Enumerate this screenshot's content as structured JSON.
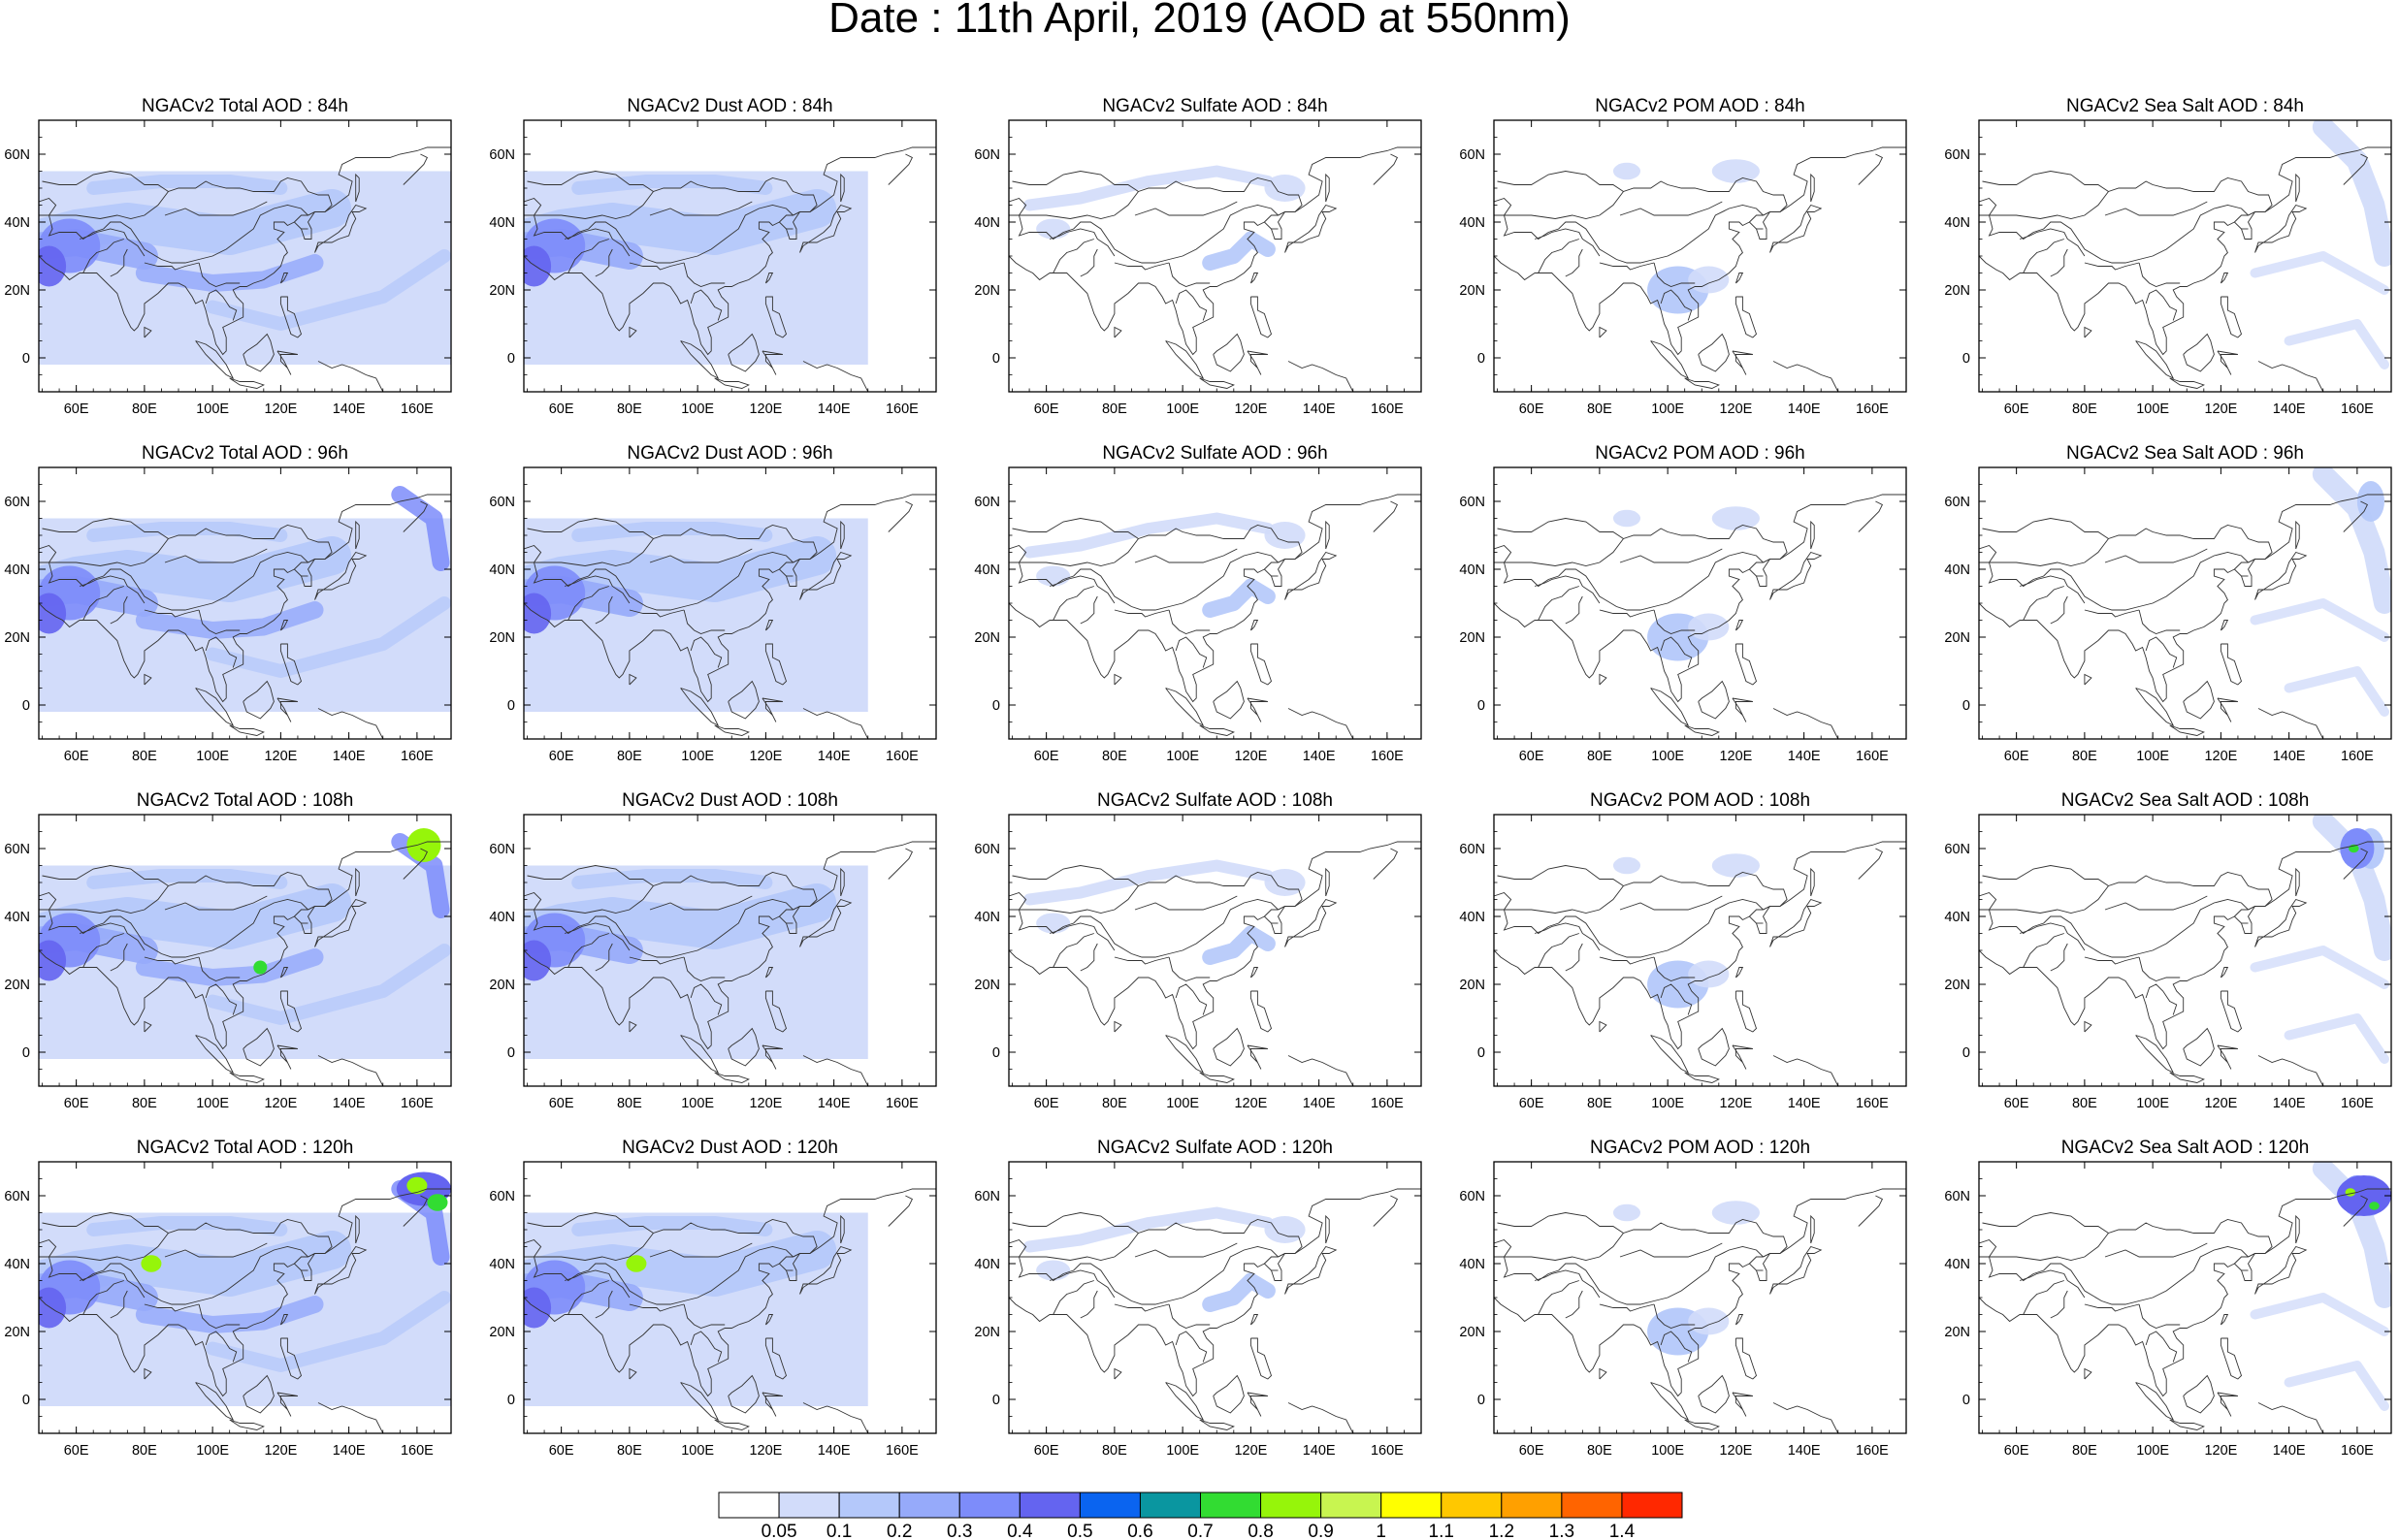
{
  "title": "Date : 11th April, 2019 (AOD at 550nm)",
  "map": {
    "x_ticks": [
      "60E",
      "80E",
      "100E",
      "120E",
      "140E",
      "160E"
    ],
    "y_ticks": [
      "60N",
      "40N",
      "20N",
      "0"
    ],
    "extent_lon": [
      49,
      170
    ],
    "extent_lat": [
      -10,
      70
    ]
  },
  "panels": [
    [
      "NGACv2 Total AOD : 84h",
      "NGACv2 Dust AOD : 84h",
      "NGACv2 Sulfate AOD : 84h",
      "NGACv2 POM AOD : 84h",
      "NGACv2 Sea Salt AOD : 84h"
    ],
    [
      "NGACv2 Total AOD : 96h",
      "NGACv2 Dust AOD : 96h",
      "NGACv2 Sulfate AOD : 96h",
      "NGACv2 POM AOD : 96h",
      "NGACv2 Sea Salt AOD : 96h"
    ],
    [
      "NGACv2 Total AOD : 108h",
      "NGACv2 Dust AOD : 108h",
      "NGACv2 Sulfate AOD : 108h",
      "NGACv2 POM AOD : 108h",
      "NGACv2 Sea Salt AOD : 108h"
    ],
    [
      "NGACv2 Total AOD : 120h",
      "NGACv2 Dust AOD : 120h",
      "NGACv2 Sulfate AOD : 120h",
      "NGACv2 POM AOD : 120h",
      "NGACv2 Sea Salt  AOD : 120h"
    ]
  ],
  "colorbar": {
    "labels": [
      "0.05",
      "0.1",
      "0.2",
      "0.3",
      "0.4",
      "0.5",
      "0.6",
      "0.7",
      "0.8",
      "0.9",
      "1",
      "1.1",
      "1.2",
      "1.3",
      "1.4"
    ],
    "colors": [
      "#ffffff",
      "#d2dcfa",
      "#b4c8fa",
      "#96aafa",
      "#7d8cfa",
      "#6464f0",
      "#0a64f0",
      "#0a96a0",
      "#32dc32",
      "#96f50a",
      "#c8f550",
      "#ffff00",
      "#ffc800",
      "#ffa000",
      "#ff6400",
      "#ff2800"
    ]
  }
}
